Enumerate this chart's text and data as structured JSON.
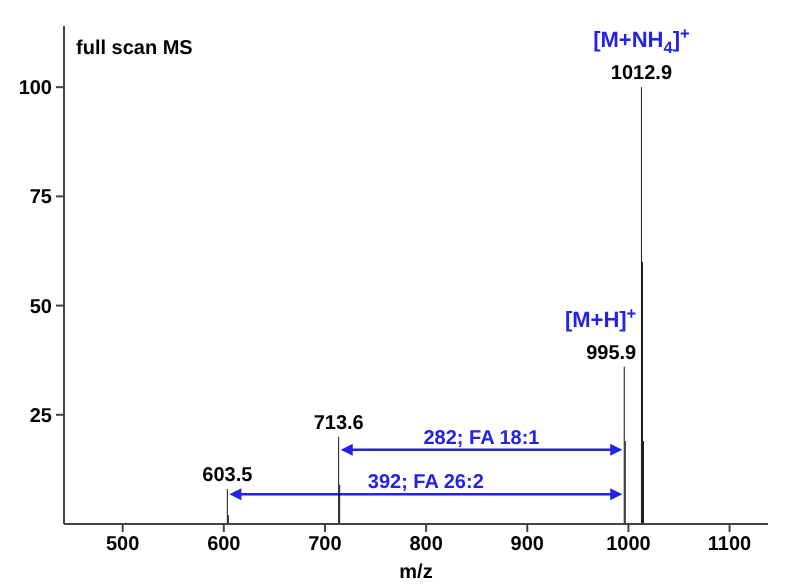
{
  "chart_data": {
    "type": "bar",
    "title": "full scan MS",
    "xlabel": "m/z",
    "x": [
      603.5,
      604.5,
      713.6,
      714.6,
      995.9,
      996.9,
      1012.9,
      1013.9,
      1014.9
    ],
    "series": [
      {
        "color": "#000000",
        "values": [
          8,
          2,
          20,
          9,
          36,
          19,
          100,
          60,
          19
        ]
      }
    ],
    "xlim": [
      442,
      1138
    ],
    "xticks": [
      500,
      600,
      700,
      800,
      900,
      1000,
      1100
    ],
    "ylim": [
      0,
      114
    ],
    "yticks": [
      25,
      50,
      75,
      100
    ],
    "annotations": [
      {
        "text": "603.5",
        "x": 603.5,
        "y": 8
      },
      {
        "text": "713.6",
        "x": 713.6,
        "y": 20
      },
      {
        "text": "995.9",
        "x": 995.9,
        "y": 36
      },
      {
        "text": "1012.9",
        "x": 1012.9,
        "y": 100
      },
      {
        "text": "[M+NH$_{4}$]$^{+}$",
        "x": 1012.9,
        "y": 100
      },
      {
        "text": "[M+H]$^{+}$",
        "x": 995.9,
        "y": 36
      },
      "282; FA 18:1",
      "392; FA 26:2"
    ]
  }
}
